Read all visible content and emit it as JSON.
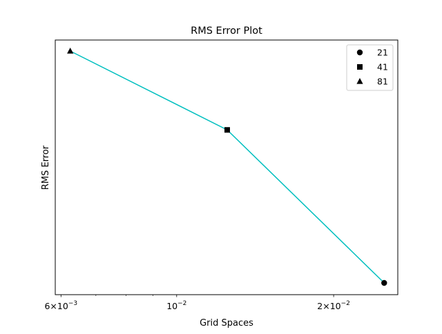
{
  "chart_data": {
    "type": "line",
    "title": "RMS Error Plot",
    "xlabel": "Grid Spaces",
    "ylabel": "RMS Error",
    "x_scale": "log",
    "xlim": [
      0.00585,
      0.02655
    ],
    "y_ticks_shown": false,
    "grid": false,
    "legend_position": "top-right",
    "line_color": "#00bfbf",
    "marker_color": "#000000",
    "x_ticks": [
      {
        "value": 0.006,
        "mantissa": "6",
        "base": "10",
        "exp": "−3"
      },
      {
        "value": 0.01,
        "mantissa": "",
        "base": "10",
        "exp": "−2"
      },
      {
        "value": 0.02,
        "mantissa": "2",
        "base": "10",
        "exp": "−2"
      }
    ],
    "x_minor_ticks": [
      0.007,
      0.008,
      0.009
    ],
    "points": [
      {
        "label": "21",
        "x": 0.025,
        "y": 0.0,
        "marker": "circle"
      },
      {
        "label": "41",
        "x": 0.0125,
        "y": 0.66,
        "marker": "square"
      },
      {
        "label": "81",
        "x": 0.00625,
        "y": 1.0,
        "marker": "triangle"
      }
    ]
  }
}
